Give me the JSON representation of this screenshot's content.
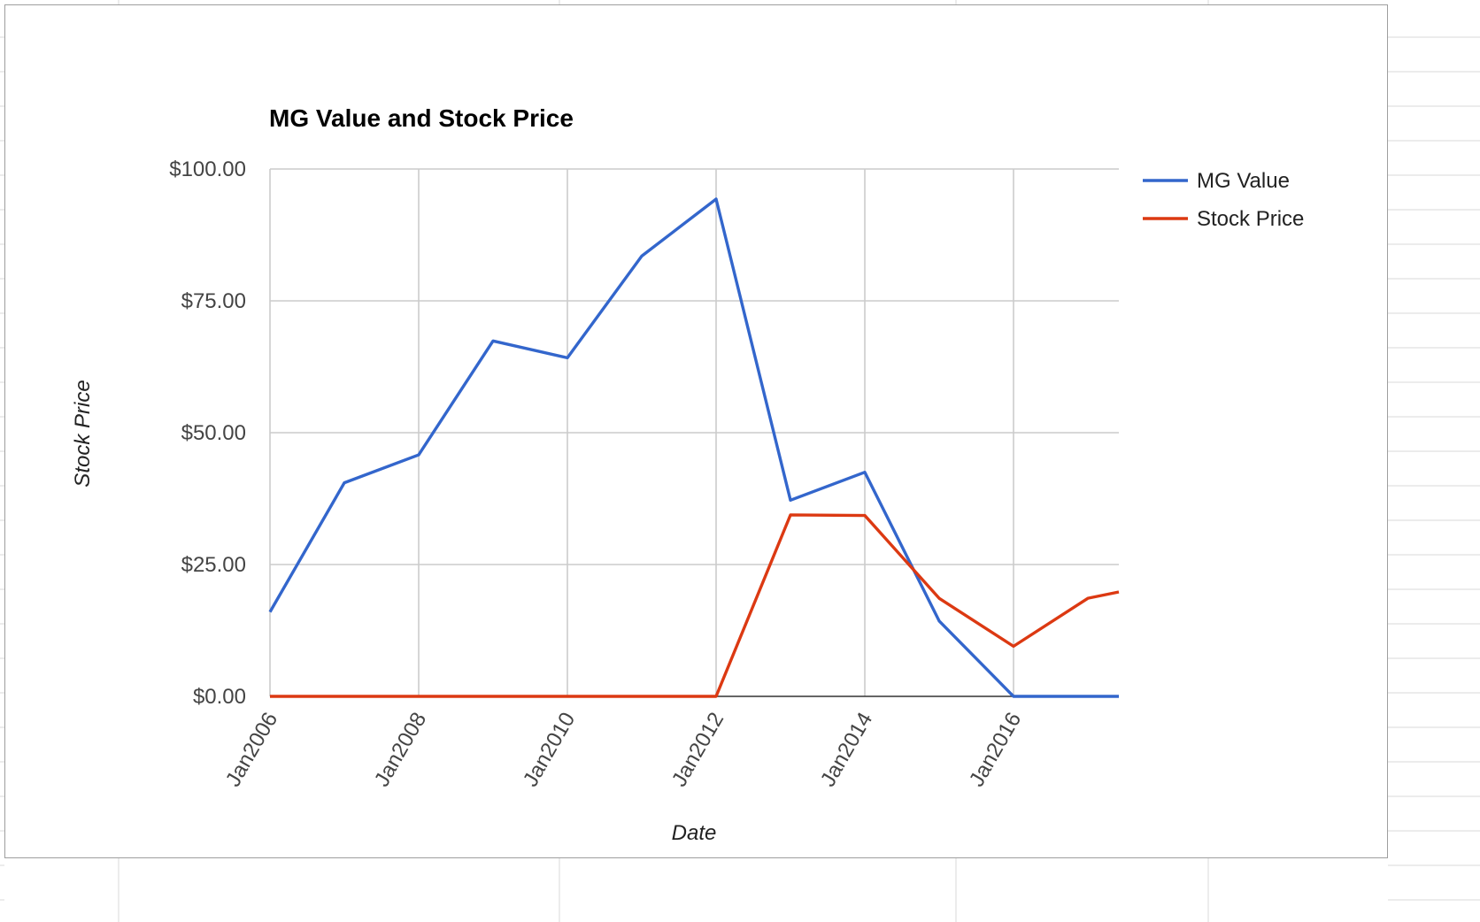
{
  "chart_data": {
    "type": "line",
    "title": "MG Value and Stock Price",
    "xlabel": "Date",
    "ylabel": "Stock Price",
    "x": [
      "2006-01",
      "2007-01",
      "2008-01",
      "2009-01",
      "2010-01",
      "2011-01",
      "2012-01",
      "2013-01",
      "2014-01",
      "2015-01",
      "2016-01",
      "2017-01",
      "2017-06"
    ],
    "x_ticks": [
      "2006-01",
      "2008-01",
      "2010-01",
      "2012-01",
      "2014-01",
      "2016-01"
    ],
    "x_tick_labels": [
      "Jan2006",
      "Jan2008",
      "Jan2010",
      "Jan2012",
      "Jan2014",
      "Jan2016"
    ],
    "xlim": [
      "2006-01",
      "2017-06"
    ],
    "y_ticks": [
      0,
      25,
      50,
      75,
      100
    ],
    "y_tick_labels": [
      "$0.00",
      "$25.00",
      "$50.00",
      "$75.00",
      "$100.00"
    ],
    "ylim": [
      0,
      100
    ],
    "series": [
      {
        "name": "MG Value",
        "color": "#3366cc",
        "values": [
          16,
          40.5,
          45.8,
          67.4,
          64.2,
          83.5,
          94.3,
          37.2,
          42.5,
          14.3,
          0,
          0,
          0
        ]
      },
      {
        "name": "Stock Price",
        "color": "#dc3912",
        "values": [
          0,
          0,
          0,
          0,
          0,
          0,
          0,
          34.4,
          34.3,
          18.6,
          9.5,
          18.6,
          19.8
        ]
      }
    ],
    "grid": true,
    "legend_position": "right"
  }
}
